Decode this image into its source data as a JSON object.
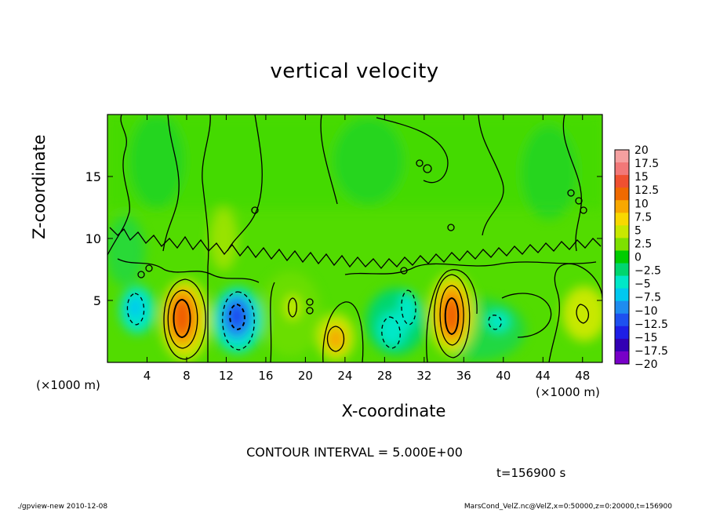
{
  "title": "vertical velocity",
  "contour_interval": "CONTOUR INTERVAL = 5.000E+00",
  "time_label": "t=156900 s",
  "footer": {
    "left": "./gpview-new  2010-12-08",
    "right": "MarsCond_VelZ.nc@VelZ,x=0:50000,z=0:20000,t=156900"
  },
  "colors": {
    "zero_band": "#00cc00",
    "frame": "#000000"
  },
  "chart_data": {
    "type": "heatmap",
    "title": "vertical velocity",
    "xlabel": "X-coordinate",
    "ylabel": "Z-coordinate",
    "x_unit_label": "(×1000 m)",
    "xlim": [
      0,
      50
    ],
    "ylim": [
      0,
      20
    ],
    "x_ticks": [
      4,
      8,
      12,
      16,
      20,
      24,
      28,
      32,
      36,
      40,
      44,
      48
    ],
    "y_ticks": [
      5,
      10,
      15
    ],
    "grid": false,
    "legend": "colorbar-right",
    "colorbar": {
      "levels": [
        "20",
        "17.5",
        "15",
        "12.5",
        "10",
        "7.5",
        "5",
        "2.5",
        "0",
        "−2.5",
        "−5",
        "−7.5",
        "−10",
        "−12.5",
        "−15",
        "−17.5",
        "−20"
      ],
      "colors": [
        "#f5a0a0",
        "#f27878",
        "#f05030",
        "#f06a00",
        "#f8a800",
        "#f8d800",
        "#c8e800",
        "#7ee000",
        "#00cc00",
        "#00d66e",
        "#00e8c8",
        "#00c8f0",
        "#1e8cf0",
        "#1e50f0",
        "#1e1ee6",
        "#3200b4",
        "#7800c8"
      ]
    },
    "features": [
      {
        "kind": "updraft",
        "x": 8,
        "z": 4.2,
        "peak": 15
      },
      {
        "kind": "downdraft",
        "x": 13,
        "z": 4.2,
        "peak": -12.5
      },
      {
        "kind": "updraft",
        "x": 22.8,
        "z": 2.2,
        "peak": 10
      },
      {
        "kind": "downdraft",
        "x": 29.5,
        "z": 3.2,
        "peak": -7.5
      },
      {
        "kind": "updraft",
        "x": 34.6,
        "z": 4.2,
        "peak": 15
      },
      {
        "kind": "downdraft",
        "x": 3.3,
        "z": 4.5,
        "peak": -7.5
      },
      {
        "kind": "updraft",
        "x": 47.8,
        "z": 4,
        "peak": 7.5
      }
    ]
  }
}
